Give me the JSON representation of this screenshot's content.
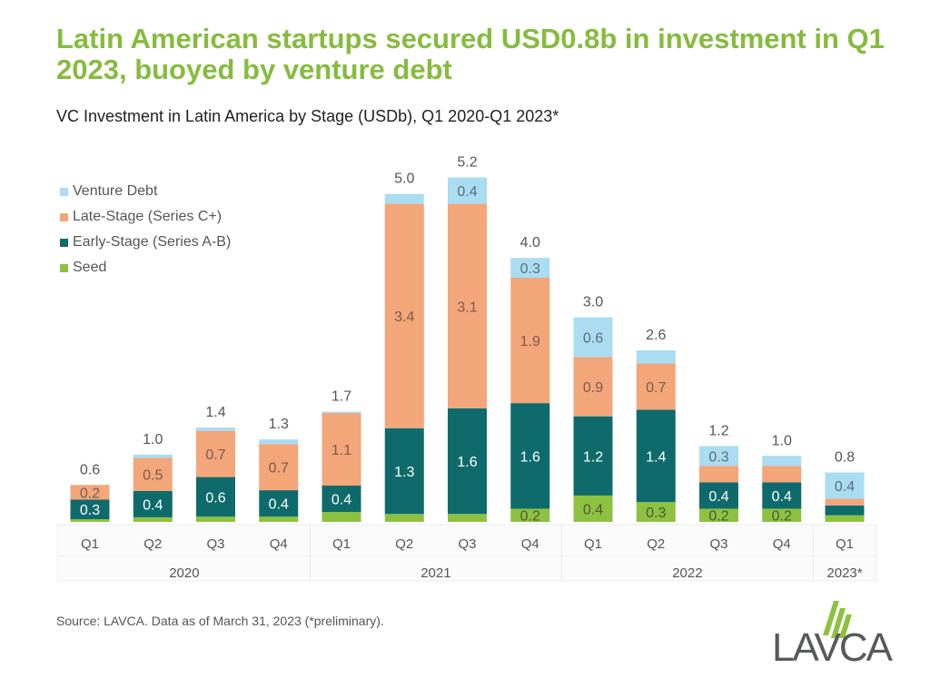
{
  "title": "Latin American startups secured USD0.8b in investment in Q1 2023, buoyed by venture debt",
  "chart_data": {
    "type": "bar",
    "stacked": true,
    "title": "VC Investment in Latin America by Stage (USDb), Q1 2020-Q1 2023*",
    "categories": [
      "Q1",
      "Q2",
      "Q3",
      "Q4",
      "Q1",
      "Q2",
      "Q3",
      "Q4",
      "Q1",
      "Q2",
      "Q3",
      "Q4",
      "Q1"
    ],
    "year_groups": [
      {
        "label": "2020",
        "count": 4
      },
      {
        "label": "2021",
        "count": 4
      },
      {
        "label": "2022",
        "count": 4
      },
      {
        "label": "2023*",
        "count": 1
      }
    ],
    "totals": [
      "0.6",
      "1.0",
      "1.4",
      "1.3",
      "1.7",
      "5.0",
      "5.2",
      "4.0",
      "3.0",
      "2.6",
      "1.2",
      "1.0",
      "0.8"
    ],
    "series": [
      {
        "name": "Seed",
        "color": "#8dc140",
        "values": [
          0.04,
          0.07,
          0.08,
          0.08,
          0.15,
          0.12,
          0.12,
          0.2,
          0.4,
          0.3,
          0.2,
          0.2,
          0.1
        ],
        "labels": [
          null,
          null,
          null,
          null,
          null,
          null,
          null,
          "0.2",
          "0.4",
          "0.3",
          "0.2",
          "0.2",
          null
        ]
      },
      {
        "name": "Early-Stage (Series A-B)",
        "color": "#0f6b6b",
        "values": [
          0.3,
          0.4,
          0.6,
          0.4,
          0.4,
          1.3,
          1.6,
          1.6,
          1.2,
          1.4,
          0.4,
          0.4,
          0.15
        ],
        "labels": [
          "0.3",
          "0.4",
          "0.6",
          "0.4",
          "0.4",
          "1.3",
          "1.6",
          "1.6",
          "1.2",
          "1.4",
          "0.4",
          "0.4",
          null
        ]
      },
      {
        "name": "Late-Stage (Series C+)",
        "color": "#f2a679",
        "values": [
          0.22,
          0.5,
          0.7,
          0.7,
          1.1,
          3.4,
          3.1,
          1.9,
          0.9,
          0.7,
          0.25,
          0.25,
          0.1
        ],
        "labels": [
          "0.2",
          "0.5",
          "0.7",
          "0.7",
          "1.1",
          "3.4",
          "3.1",
          "1.9",
          "0.9",
          "0.7",
          null,
          null,
          null
        ]
      },
      {
        "name": "Venture Debt",
        "color": "#aadcf2",
        "values": [
          0.0,
          0.05,
          0.05,
          0.07,
          0.02,
          0.15,
          0.4,
          0.3,
          0.6,
          0.2,
          0.3,
          0.15,
          0.4
        ],
        "labels": [
          null,
          null,
          null,
          null,
          null,
          null,
          "0.4",
          "0.3",
          "0.6",
          null,
          "0.3",
          null,
          "0.4"
        ]
      }
    ],
    "legend_order": [
      "Venture Debt",
      "Late-Stage (Series C+)",
      "Early-Stage (Series A-B)",
      "Seed"
    ],
    "legend_placement": "top-left",
    "ylim": [
      0,
      5.5
    ],
    "grid": false,
    "y_axis_visible": false
  },
  "source": "Source: LAVCA. Data as of March 31, 2023 (*preliminary).",
  "logo": {
    "text": "LAVCA",
    "gray": "#58595b",
    "green": "#8dc140"
  }
}
